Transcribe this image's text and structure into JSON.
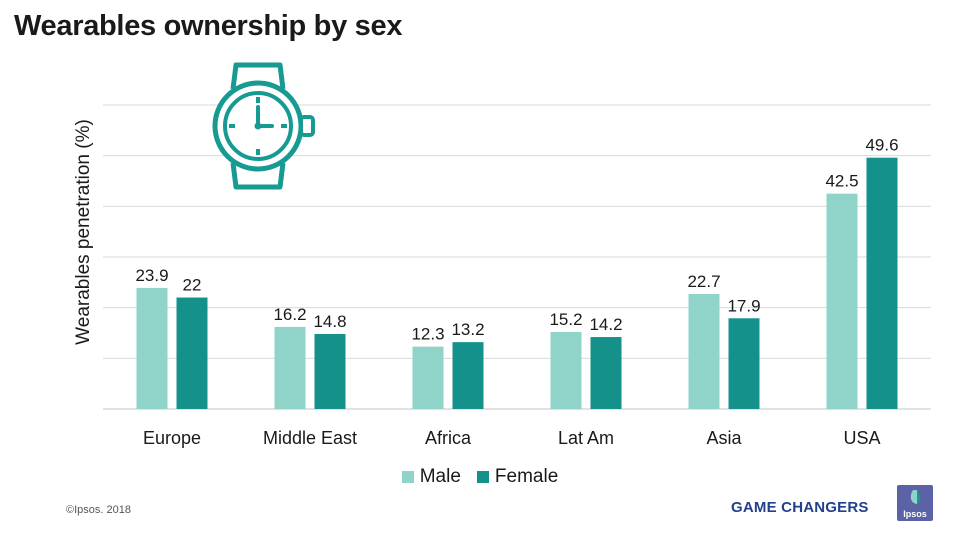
{
  "title": "Wearables ownership by sex",
  "icon": "wristwatch-icon",
  "colors": {
    "male": "#8fd3c9",
    "female": "#13918a",
    "grid": "#d9d9d9",
    "icon": "#169a92"
  },
  "chart_data": {
    "type": "bar",
    "title": "Wearables ownership by sex",
    "xlabel": "",
    "ylabel": "Wearables penetration (%)",
    "categories": [
      "Europe",
      "Middle East",
      "Africa",
      "Lat Am",
      "Asia",
      "USA"
    ],
    "series": [
      {
        "name": "Male",
        "values": [
          23.9,
          16.2,
          12.3,
          15.2,
          22.7,
          42.5
        ]
      },
      {
        "name": "Female",
        "values": [
          22,
          14.8,
          13.2,
          14.2,
          17.9,
          49.6
        ]
      }
    ],
    "ylim": [
      0,
      60
    ],
    "grid": true,
    "legend": "bottom"
  },
  "footer": {
    "copyright": "©Ipsos. 2018",
    "brand": "GAME CHANGERS",
    "logo": "Ipsos"
  }
}
